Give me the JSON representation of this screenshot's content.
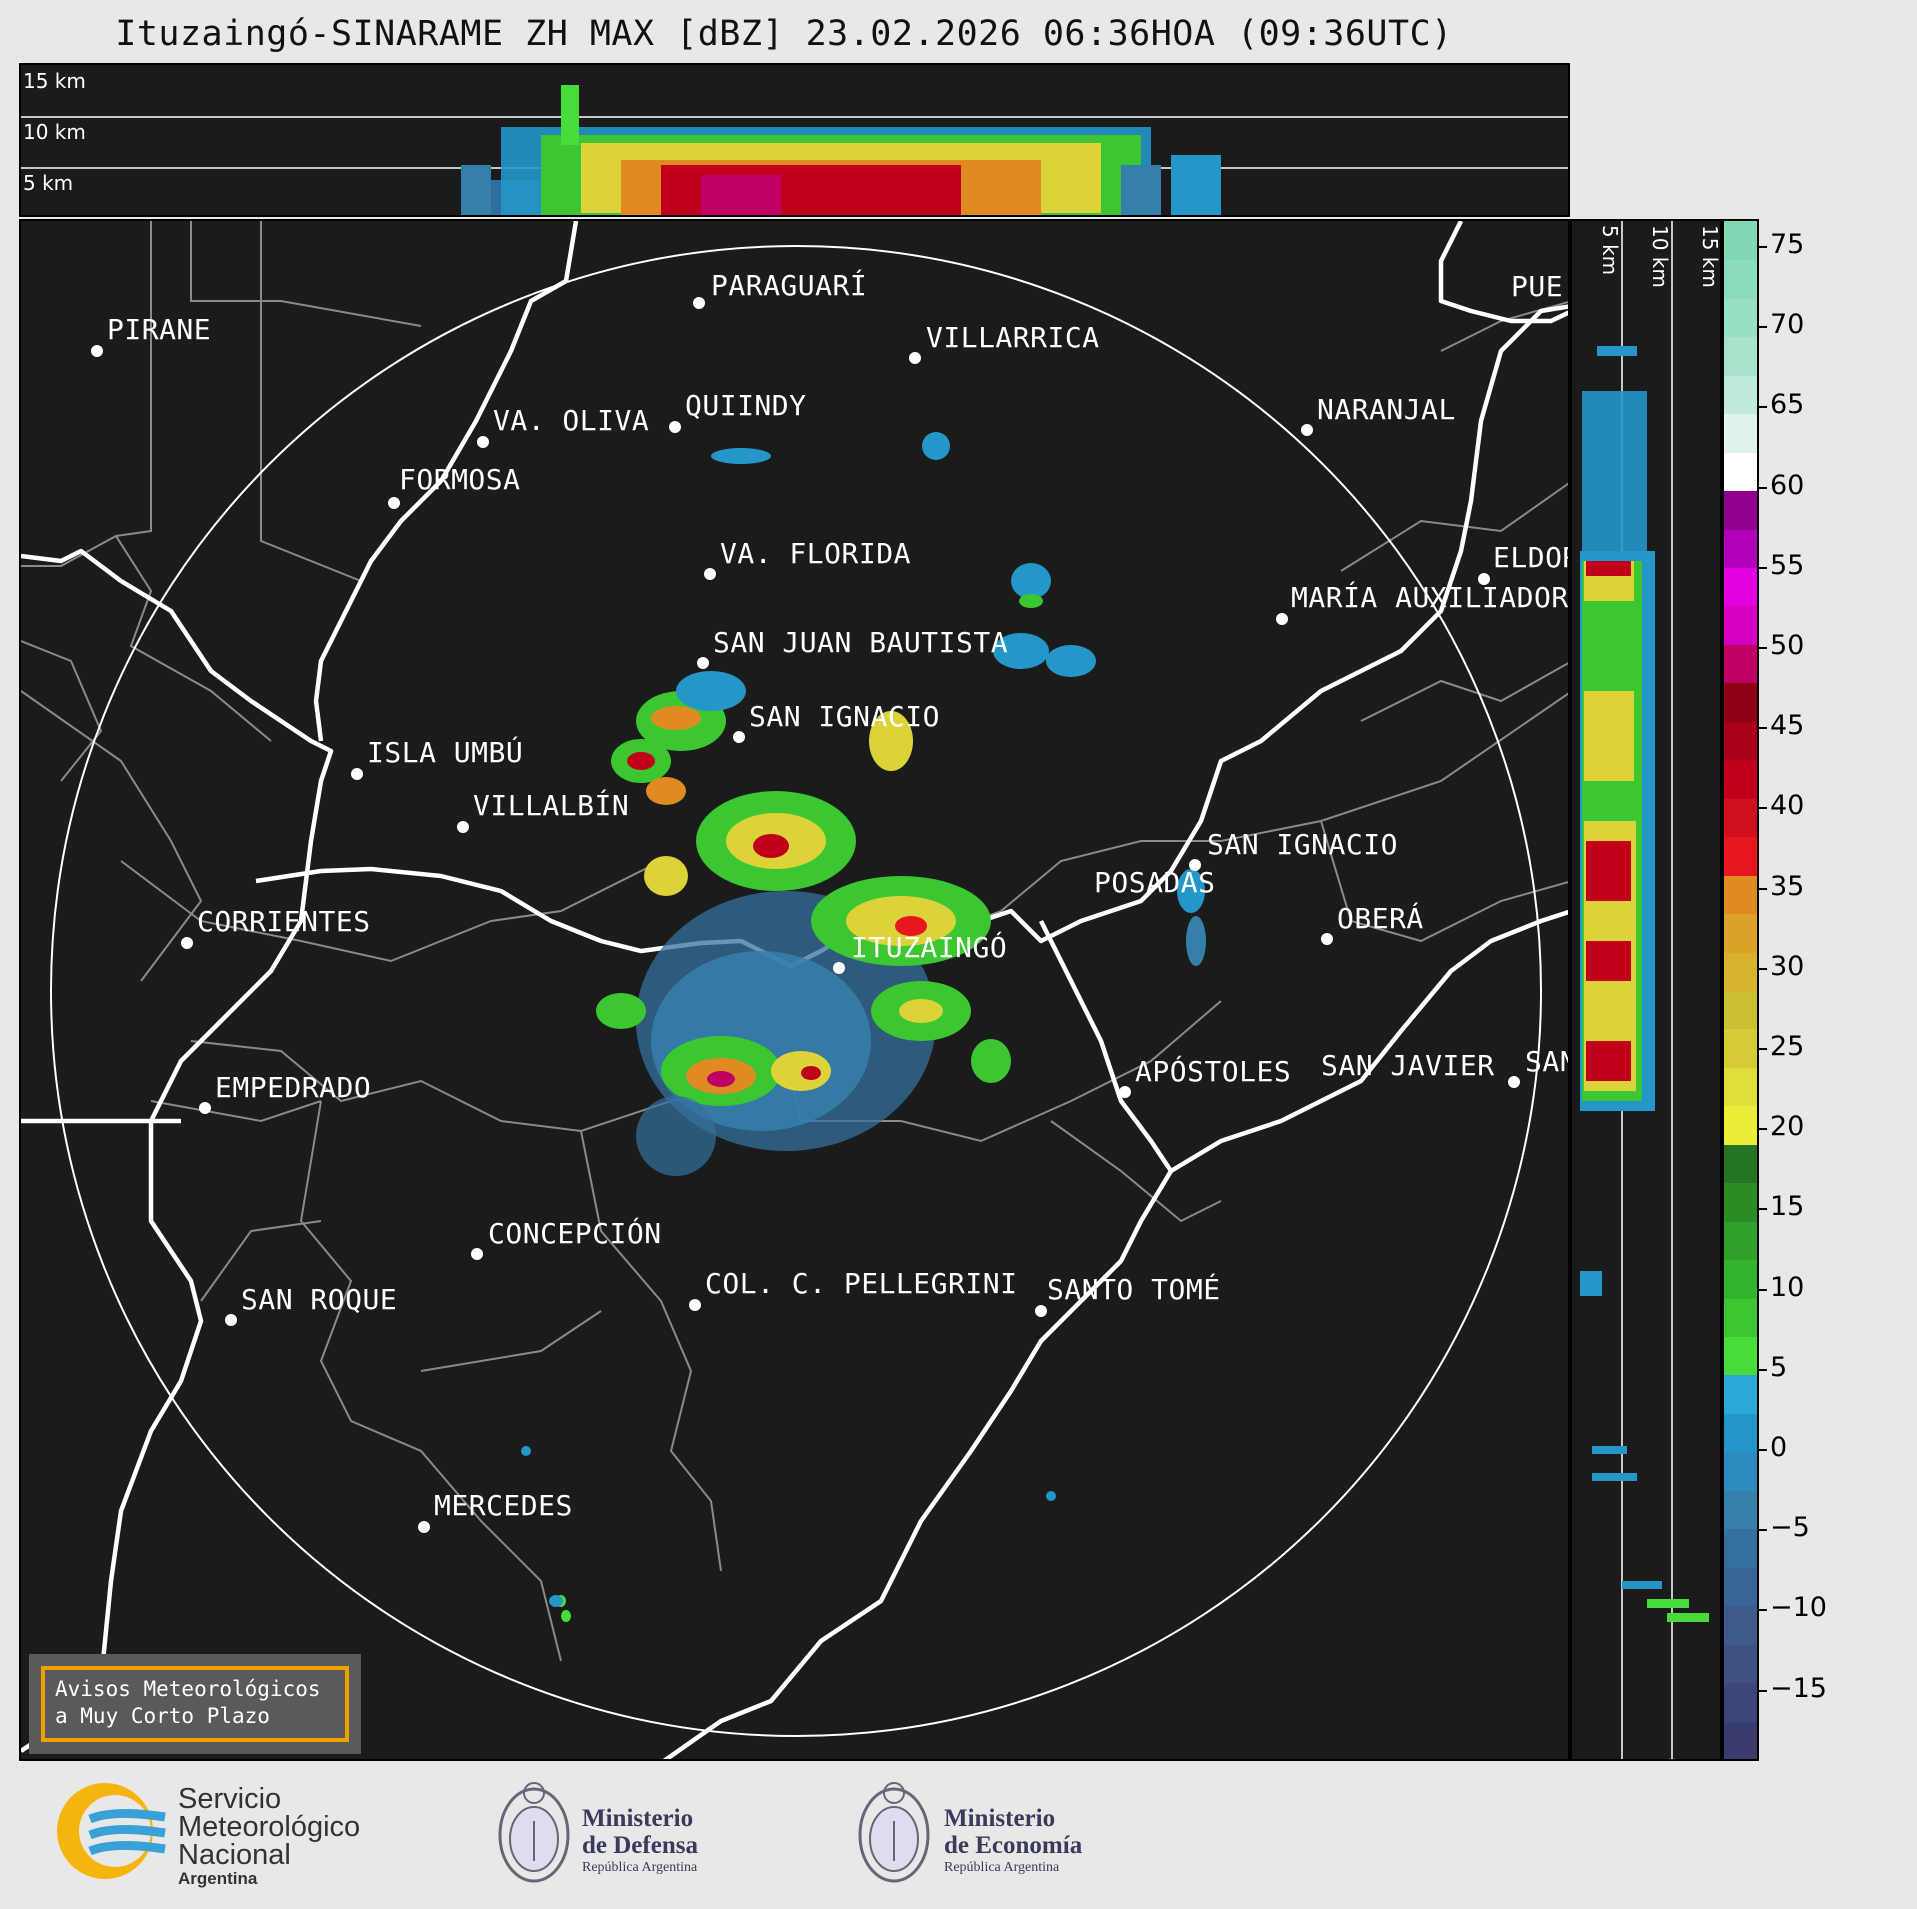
{
  "title": "Ituzaingó-SINARAME ZH MAX [dBZ] 23.02.2026 06:36HOA (09:36UTC)",
  "top_panel": {
    "height_labels": [
      "15 km",
      "10 km",
      "5 km"
    ]
  },
  "side_panel": {
    "height_labels": [
      "5 km",
      "10 km",
      "15 km"
    ]
  },
  "cities": [
    {
      "name": "PARAGUARÍ"
    },
    {
      "name": "PIRANE"
    },
    {
      "name": "VILLARRICA"
    },
    {
      "name": "VA. OLIVA"
    },
    {
      "name": "QUIINDY"
    },
    {
      "name": "NARANJAL"
    },
    {
      "name": "FORMOSA"
    },
    {
      "name": "VA. FLORIDA"
    },
    {
      "name": "MARÍA AUXILIADOR"
    },
    {
      "name": "ELDOR"
    },
    {
      "name": "SAN JUAN BAUTISTA"
    },
    {
      "name": "SAN IGNACIO"
    },
    {
      "name": "ISLA UMBÚ"
    },
    {
      "name": "VILLALBÍN"
    },
    {
      "name": "SAN IGNACIO"
    },
    {
      "name": "POSADAS"
    },
    {
      "name": "CORRIENTES"
    },
    {
      "name": "OBERÁ"
    },
    {
      "name": "ITUZAINGÓ"
    },
    {
      "name": "EMPEDRADO"
    },
    {
      "name": "APÓSTOLES"
    },
    {
      "name": "SAN JAVIER"
    },
    {
      "name": "SAN"
    },
    {
      "name": "CONCEPCIÓN"
    },
    {
      "name": "COL. C. PELLEGRINI"
    },
    {
      "name": "SANTO TOMÉ"
    },
    {
      "name": "SAN ROQUE"
    },
    {
      "name": "MERCEDES"
    },
    {
      "name": "PUE"
    }
  ],
  "notice": {
    "line1": "Avisos Meteorológicos",
    "line2": "a Muy Corto Plazo"
  },
  "colorbar": {
    "unit": "dBZ",
    "ticks": [
      "75",
      "70",
      "65",
      "60",
      "55",
      "50",
      "45",
      "40",
      "35",
      "30",
      "25",
      "20",
      "15",
      "10",
      "5",
      "0",
      "−5",
      "−10",
      "−15"
    ],
    "colors": [
      "#3b3c6e",
      "#3e4579",
      "#3f5083",
      "#3c5a8c",
      "#396595",
      "#35709e",
      "#3580ab",
      "#2d8cbb",
      "#2497c8",
      "#2aa8d8",
      "#48dc3a",
      "#3bc632",
      "#34b42d",
      "#2ea12a",
      "#298c25",
      "#247423",
      "#ecec3a",
      "#e0de3a",
      "#d6cc36",
      "#cdbd33",
      "#d8b22e",
      "#dca12a",
      "#e08b22",
      "#e5161e",
      "#d0101e",
      "#c0001a",
      "#a8001a",
      "#8e0013",
      "#c00064",
      "#d800c0",
      "#e000e0",
      "#b000b8",
      "#900090",
      "#ffffff",
      "#e0f4ec",
      "#c0eadc",
      "#a8e4cc",
      "#98e0c4",
      "#8adcbc",
      "#80d8b4"
    ]
  },
  "logos": {
    "smn": {
      "line1": "Servicio",
      "line2": "Meteorológico",
      "line3": "Nacional",
      "line4": "Argentina"
    },
    "defensa": {
      "line1": "Ministerio",
      "line2": "de Defensa",
      "line3": "República Argentina"
    },
    "economia": {
      "line1": "Ministerio",
      "line2": "de Economía",
      "line3": "República Argentina"
    }
  }
}
